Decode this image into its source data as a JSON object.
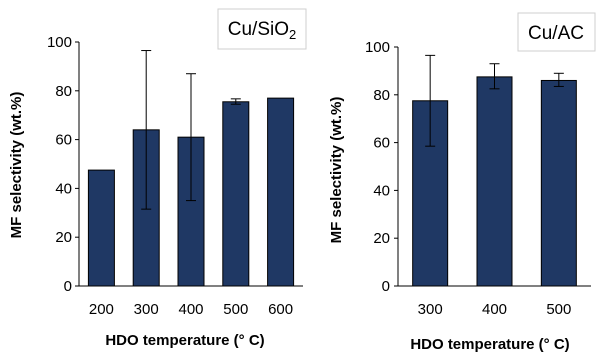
{
  "chart_data": [
    {
      "type": "bar",
      "title": "Cu/SiO₂",
      "xlabel": "HDO temperature (° C)",
      "ylabel": "MF selectivity (wt.%)",
      "categories": [
        "200",
        "300",
        "400",
        "500",
        "600"
      ],
      "values": [
        47.5,
        64,
        61,
        75.5,
        77
      ],
      "error_low": [
        47.5,
        31.5,
        35,
        74.5,
        77
      ],
      "error_high": [
        47.5,
        96.5,
        87,
        76.7,
        77
      ],
      "ylim": [
        0,
        100
      ],
      "yticks": [
        0,
        20,
        40,
        60,
        80,
        100
      ],
      "bar_color": "#1f3864",
      "grid": false,
      "legend": "none"
    },
    {
      "type": "bar",
      "title": "Cu/AC",
      "xlabel": "HDO temperature (° C)",
      "ylabel": "MF selectivity (wt.%)",
      "categories": [
        "300",
        "400",
        "500"
      ],
      "values": [
        77.5,
        87.5,
        86
      ],
      "error_low": [
        58.5,
        82.5,
        83.5
      ],
      "error_high": [
        96.5,
        93,
        89
      ],
      "ylim": [
        0,
        100
      ],
      "yticks": [
        0,
        20,
        40,
        60,
        80,
        100
      ],
      "bar_color": "#1f3864",
      "grid": false,
      "legend": "none"
    }
  ]
}
